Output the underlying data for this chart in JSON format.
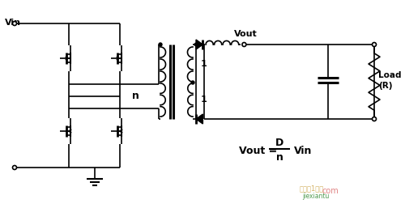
{
  "bg_color": "#ffffff",
  "figw": 5.0,
  "figh": 2.57,
  "dpi": 100,
  "vin_label": "Vin",
  "vout_label": "Vout",
  "n_label": "n",
  "load_label1": "Load",
  "load_label2": "(R)",
  "formula_vout": "Vout = ",
  "formula_D": "D",
  "formula_n": "n",
  "formula_vin": "Vin",
  "wm1": "电路图1化化",
  "wm2": "jiexiantu",
  "wm_color1": "#c09020",
  "wm_color2": "#208020",
  "wm_color3": "#cc3333"
}
